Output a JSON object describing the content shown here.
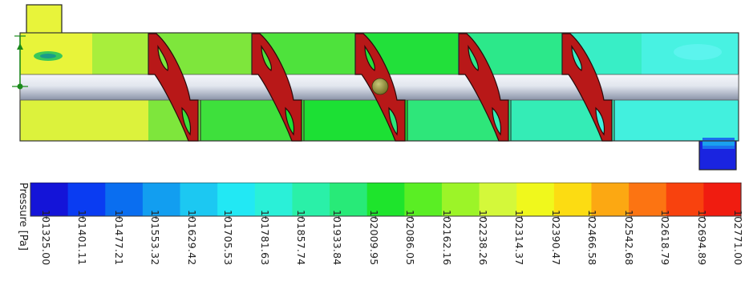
{
  "legend": {
    "title": "Pressure [Pa]",
    "ticks": [
      "101325.00",
      "101401.11",
      "101477.21",
      "101553.32",
      "101629.42",
      "101705.53",
      "101781.63",
      "101857.74",
      "101933.84",
      "102009.95",
      "102086.05",
      "102162.16",
      "102238.26",
      "102314.37",
      "102390.47",
      "102466.58",
      "102542.68",
      "102618.79",
      "102694.89",
      "102771.00"
    ],
    "colors": [
      "#1414d8",
      "#0a3cf2",
      "#0a6ef0",
      "#129ef0",
      "#1cc8f2",
      "#22e8f4",
      "#2af0d8",
      "#2af0a8",
      "#28ea78",
      "#1ee42c",
      "#5aee24",
      "#9cf428",
      "#d4f83a",
      "#f0f81c",
      "#fcdc12",
      "#fca812",
      "#fc7412",
      "#f8420e",
      "#f01c10"
    ]
  },
  "model": {
    "field_colors": {
      "left": "#e8f43a",
      "c1": "#7ee63c",
      "c2": "#48e23e",
      "c3": "#1ee03a",
      "c4": "#2ce87e",
      "c5": "#34ecb2",
      "c6": "#3cf0de",
      "outlet": "#1a24e0",
      "blade": "#b01818"
    }
  }
}
